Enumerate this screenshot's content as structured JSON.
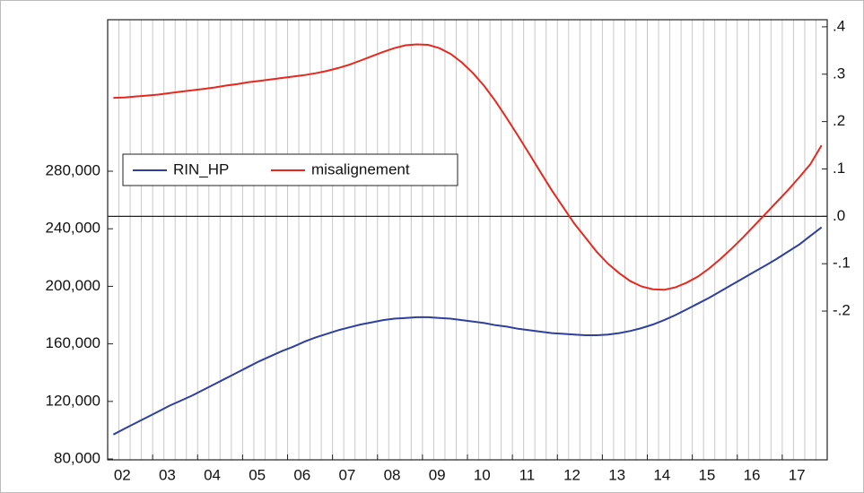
{
  "chart_data": {
    "type": "line",
    "categories": [
      "02",
      null,
      null,
      null,
      "03",
      null,
      null,
      null,
      "04",
      null,
      null,
      null,
      "05",
      null,
      null,
      null,
      "06",
      null,
      null,
      null,
      "07",
      null,
      null,
      null,
      "08",
      null,
      null,
      null,
      "09",
      null,
      null,
      null,
      "10",
      null,
      null,
      null,
      "11",
      null,
      null,
      null,
      "12",
      null,
      null,
      null,
      "13",
      null,
      null,
      null,
      "14",
      null,
      null,
      null,
      "15",
      null,
      null,
      null,
      "16",
      null,
      null,
      null,
      "17",
      null,
      null,
      null
    ],
    "series": [
      {
        "name": "RIN_HP",
        "color": "#2e3f9e",
        "axis": "y",
        "values": [
          97000,
          101000,
          105000,
          109000,
          113000,
          117000,
          120500,
          124000,
          128000,
          132000,
          136000,
          140000,
          144000,
          148000,
          151500,
          155000,
          158000,
          161500,
          164500,
          167000,
          169500,
          171500,
          173500,
          175000,
          176500,
          177500,
          178000,
          178500,
          178500,
          178000,
          177500,
          176500,
          175500,
          174500,
          173000,
          172000,
          170500,
          169500,
          168500,
          167500,
          167000,
          166500,
          166000,
          166000,
          166500,
          167500,
          169000,
          171000,
          173500,
          176500,
          180000,
          184000,
          188000,
          192000,
          196500,
          201000,
          205500,
          210000,
          214500,
          219000,
          224000,
          229000,
          235000,
          241000
        ]
      },
      {
        "name": "misalignement",
        "color": "#e8281e",
        "axis": "y2",
        "values": [
          0.25,
          0.251,
          0.253,
          0.255,
          0.257,
          0.26,
          0.263,
          0.266,
          0.269,
          0.272,
          0.276,
          0.279,
          0.283,
          0.286,
          0.289,
          0.292,
          0.295,
          0.298,
          0.302,
          0.307,
          0.313,
          0.32,
          0.329,
          0.338,
          0.347,
          0.355,
          0.361,
          0.363,
          0.362,
          0.355,
          0.343,
          0.325,
          0.302,
          0.275,
          0.243,
          0.207,
          0.17,
          0.132,
          0.093,
          0.055,
          0.02,
          -0.015,
          -0.045,
          -0.075,
          -0.1,
          -0.12,
          -0.137,
          -0.148,
          -0.154,
          -0.155,
          -0.15,
          -0.14,
          -0.127,
          -0.11,
          -0.09,
          -0.068,
          -0.045,
          -0.02,
          0.005,
          0.03,
          0.055,
          0.082,
          0.11,
          0.15
        ]
      }
    ],
    "ylim": [
      79400,
      385300
    ],
    "yticks": [
      {
        "value": 80000,
        "label": "80,000"
      },
      {
        "value": 120000,
        "label": "120,000"
      },
      {
        "value": 160000,
        "label": "160,000"
      },
      {
        "value": 200000,
        "label": "200,000"
      },
      {
        "value": 240000,
        "label": "240,000"
      },
      {
        "value": 280000,
        "label": "280,000"
      }
    ],
    "y2lim": [
      -0.514,
      0.415
    ],
    "y2ticks": [
      {
        "value": 0.4,
        "label": ".4"
      },
      {
        "value": 0.3,
        "label": ".3"
      },
      {
        "value": 0.2,
        "label": ".2"
      },
      {
        "value": 0.1,
        "label": ".1"
      },
      {
        "value": 0,
        "label": ".0"
      },
      {
        "value": -0.1,
        "label": "-.1"
      },
      {
        "value": -0.2,
        "label": "-.2"
      }
    ],
    "grid": true
  }
}
